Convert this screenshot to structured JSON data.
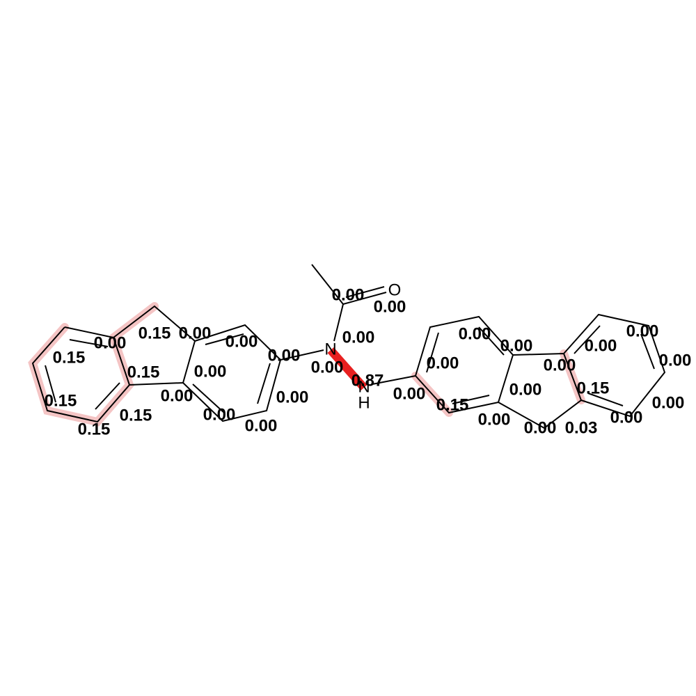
{
  "atoms": [
    "O",
    "N",
    "N",
    "H"
  ],
  "bond_labels": [
    "0.00",
    "0.00",
    "0.00",
    "0.00",
    "0.87",
    "0.00",
    "0.00",
    "0.00",
    "0.00",
    "0.00",
    "0.00",
    "0.00",
    "0.00",
    "0.00",
    "0.00",
    "0.15",
    "0.03",
    "0.00",
    "0.00",
    "0.00",
    "0.15",
    "0.00",
    "0.00",
    "0.00",
    "0.00",
    "0.00",
    "0.15",
    "0.15",
    "0.15",
    "0.15",
    "0.15",
    "0.00",
    "0.15",
    "0.00",
    "0.00",
    "0.00"
  ]
}
